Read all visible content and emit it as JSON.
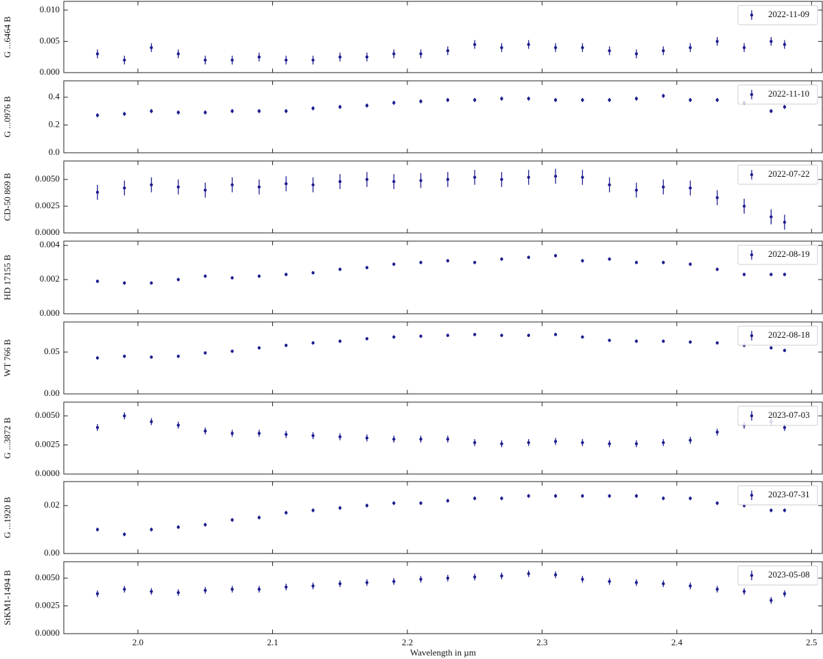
{
  "chart_data": [
    {
      "type": "errorbar",
      "ylabel": "G ...6464 B",
      "series_name": "2022-11-09",
      "color": "#1c1c8f",
      "x": [
        1.97,
        1.99,
        2.01,
        2.03,
        2.05,
        2.07,
        2.09,
        2.11,
        2.13,
        2.15,
        2.17,
        2.19,
        2.21,
        2.23,
        2.25,
        2.27,
        2.29,
        2.31,
        2.33,
        2.35,
        2.37,
        2.39,
        2.41,
        2.43,
        2.45,
        2.47,
        2.48
      ],
      "values": [
        0.003,
        0.002,
        0.004,
        0.003,
        0.002,
        0.002,
        0.0025,
        0.002,
        0.002,
        0.0025,
        0.0025,
        0.003,
        0.003,
        0.0035,
        0.0045,
        0.004,
        0.0045,
        0.004,
        0.004,
        0.0035,
        0.003,
        0.0035,
        0.004,
        0.005,
        0.004,
        0.005,
        0.0045
      ],
      "error": 0.0007,
      "ylim": [
        0,
        0.0114
      ],
      "yticks": [
        {
          "value": 0,
          "label": "0.000"
        },
        {
          "value": 0.005,
          "label": "0.005"
        },
        {
          "value": 0.01,
          "label": "0.010"
        }
      ]
    },
    {
      "type": "errorbar",
      "ylabel": "G ...0976 B",
      "series_name": "2022-11-10",
      "color": "#1c1c8f",
      "x": [
        1.97,
        1.99,
        2.01,
        2.03,
        2.05,
        2.07,
        2.09,
        2.11,
        2.13,
        2.15,
        2.17,
        2.19,
        2.21,
        2.23,
        2.25,
        2.27,
        2.29,
        2.31,
        2.33,
        2.35,
        2.37,
        2.39,
        2.41,
        2.43,
        2.45,
        2.47,
        2.48
      ],
      "values": [
        0.27,
        0.28,
        0.3,
        0.29,
        0.29,
        0.3,
        0.3,
        0.3,
        0.32,
        0.33,
        0.34,
        0.36,
        0.37,
        0.38,
        0.38,
        0.39,
        0.39,
        0.38,
        0.38,
        0.38,
        0.39,
        0.41,
        0.38,
        0.38,
        0.36,
        0.3,
        0.33
      ],
      "error": 0.015,
      "ylim": [
        0,
        0.518
      ],
      "yticks": [
        {
          "value": 0,
          "label": "0.0"
        },
        0.2,
        0.4
      ]
    },
    {
      "type": "errorbar",
      "ylabel": "CD-50 869 B",
      "series_name": "2022-07-22",
      "color": "#1c1c8f",
      "x": [
        1.97,
        1.99,
        2.01,
        2.03,
        2.05,
        2.07,
        2.09,
        2.11,
        2.13,
        2.15,
        2.17,
        2.19,
        2.21,
        2.23,
        2.25,
        2.27,
        2.29,
        2.31,
        2.33,
        2.35,
        2.37,
        2.39,
        2.41,
        2.43,
        2.45,
        2.47,
        2.48
      ],
      "values": [
        0.0038,
        0.0042,
        0.0045,
        0.0043,
        0.004,
        0.0045,
        0.0043,
        0.0046,
        0.0045,
        0.0048,
        0.005,
        0.0048,
        0.0049,
        0.005,
        0.0052,
        0.005,
        0.0052,
        0.0053,
        0.0052,
        0.0045,
        0.004,
        0.0043,
        0.0042,
        0.0033,
        0.0025,
        0.0015,
        0.001
      ],
      "error": 0.0007,
      "ylim": [
        0,
        0.00673
      ],
      "yticks": [
        {
          "value": 0,
          "label": "0.0000"
        },
        0.0025,
        {
          "value": 0.005,
          "label": "0.0050"
        }
      ]
    },
    {
      "type": "errorbar",
      "ylabel": "HD 17155 B",
      "series_name": "2022-08-19",
      "color": "#1c1c8f",
      "x": [
        1.97,
        1.99,
        2.01,
        2.03,
        2.05,
        2.07,
        2.09,
        2.11,
        2.13,
        2.15,
        2.17,
        2.19,
        2.21,
        2.23,
        2.25,
        2.27,
        2.29,
        2.31,
        2.33,
        2.35,
        2.37,
        2.39,
        2.41,
        2.43,
        2.45,
        2.47,
        2.48
      ],
      "values": [
        0.0019,
        0.0018,
        0.0018,
        0.002,
        0.0022,
        0.0021,
        0.0022,
        0.0023,
        0.0024,
        0.0026,
        0.0027,
        0.0029,
        0.003,
        0.0031,
        0.003,
        0.0032,
        0.0033,
        0.0034,
        0.0031,
        0.0032,
        0.003,
        0.003,
        0.0029,
        0.0026,
        0.0023,
        0.0023,
        0.0023
      ],
      "error": 0.0001,
      "ylim": [
        0,
        0.00425
      ],
      "yticks": [
        {
          "value": 0,
          "label": "0.000"
        },
        {
          "value": 0.002,
          "label": "0.002"
        },
        {
          "value": 0.004,
          "label": "0.004"
        }
      ]
    },
    {
      "type": "errorbar",
      "ylabel": "WT 766 B",
      "series_name": "2022-08-18",
      "color": "#1c1c8f",
      "x": [
        1.97,
        1.99,
        2.01,
        2.03,
        2.05,
        2.07,
        2.09,
        2.11,
        2.13,
        2.15,
        2.17,
        2.19,
        2.21,
        2.23,
        2.25,
        2.27,
        2.29,
        2.31,
        2.33,
        2.35,
        2.37,
        2.39,
        2.41,
        2.43,
        2.45,
        2.47,
        2.48
      ],
      "values": [
        0.043,
        0.045,
        0.044,
        0.045,
        0.049,
        0.051,
        0.055,
        0.058,
        0.061,
        0.063,
        0.066,
        0.068,
        0.069,
        0.07,
        0.071,
        0.07,
        0.07,
        0.071,
        0.068,
        0.064,
        0.063,
        0.063,
        0.062,
        0.061,
        0.058,
        0.055,
        0.052
      ],
      "error": 0.002,
      "ylim": [
        0,
        0.086
      ],
      "yticks": [
        {
          "value": 0,
          "label": "0.00"
        },
        0.05
      ]
    },
    {
      "type": "errorbar",
      "ylabel": "G ...3872 B",
      "series_name": "2023-07-03",
      "color": "#1c1c8f",
      "x": [
        1.97,
        1.99,
        2.01,
        2.03,
        2.05,
        2.07,
        2.09,
        2.11,
        2.13,
        2.15,
        2.17,
        2.19,
        2.21,
        2.23,
        2.25,
        2.27,
        2.29,
        2.31,
        2.33,
        2.35,
        2.37,
        2.39,
        2.41,
        2.43,
        2.45,
        2.47,
        2.48
      ],
      "values": [
        0.004,
        0.005,
        0.0045,
        0.0042,
        0.0037,
        0.0035,
        0.0035,
        0.0034,
        0.0033,
        0.0032,
        0.0031,
        0.003,
        0.003,
        0.003,
        0.0027,
        0.0026,
        0.0027,
        0.0028,
        0.0027,
        0.0026,
        0.0026,
        0.0027,
        0.0029,
        0.0036,
        0.0042,
        0.0045,
        0.004
      ],
      "error": 0.0003,
      "ylim": [
        0,
        0.00618
      ],
      "yticks": [
        {
          "value": 0,
          "label": "0.0000"
        },
        0.0025,
        {
          "value": 0.005,
          "label": "0.0050"
        }
      ]
    },
    {
      "type": "errorbar",
      "ylabel": "G ...1920 B",
      "series_name": "2023-07-31",
      "color": "#1c1c8f",
      "x": [
        1.97,
        1.99,
        2.01,
        2.03,
        2.05,
        2.07,
        2.09,
        2.11,
        2.13,
        2.15,
        2.17,
        2.19,
        2.21,
        2.23,
        2.25,
        2.27,
        2.29,
        2.31,
        2.33,
        2.35,
        2.37,
        2.39,
        2.41,
        2.43,
        2.45,
        2.47,
        2.48
      ],
      "values": [
        0.01,
        0.008,
        0.01,
        0.011,
        0.012,
        0.014,
        0.015,
        0.017,
        0.018,
        0.019,
        0.02,
        0.021,
        0.021,
        0.022,
        0.023,
        0.023,
        0.024,
        0.024,
        0.024,
        0.024,
        0.024,
        0.023,
        0.023,
        0.021,
        0.02,
        0.018,
        0.018
      ],
      "error": 0.0008,
      "ylim": [
        0,
        0.03
      ],
      "yticks": [
        {
          "value": 0,
          "label": "0.00"
        },
        0.02
      ]
    },
    {
      "type": "errorbar",
      "ylabel": "StKM1-1494 B",
      "series_name": "2023-05-08",
      "color": "#1c1c8f",
      "x": [
        1.97,
        1.99,
        2.01,
        2.03,
        2.05,
        2.07,
        2.09,
        2.11,
        2.13,
        2.15,
        2.17,
        2.19,
        2.21,
        2.23,
        2.25,
        2.27,
        2.29,
        2.31,
        2.33,
        2.35,
        2.37,
        2.39,
        2.41,
        2.43,
        2.45,
        2.47,
        2.48
      ],
      "values": [
        0.0036,
        0.004,
        0.0038,
        0.0037,
        0.0039,
        0.004,
        0.004,
        0.0042,
        0.0043,
        0.0045,
        0.0046,
        0.0047,
        0.0049,
        0.005,
        0.0051,
        0.0052,
        0.0054,
        0.0053,
        0.0049,
        0.0047,
        0.0046,
        0.0045,
        0.0043,
        0.004,
        0.0038,
        0.003,
        0.0036
      ],
      "error": 0.0003,
      "ylim": [
        0,
        0.00648
      ],
      "yticks": [
        {
          "value": 0,
          "label": "0.0000"
        },
        0.0025,
        {
          "value": 0.005,
          "label": "0.0050"
        }
      ],
      "xlabel": "Wavelength in µm",
      "xlim": [
        1.945,
        2.508
      ],
      "xticks": [
        {
          "value": 2,
          "label": "2.0"
        },
        2.1,
        2.2,
        2.3,
        2.4,
        {
          "value": 2.5,
          "label": "2.5"
        }
      ]
    }
  ]
}
